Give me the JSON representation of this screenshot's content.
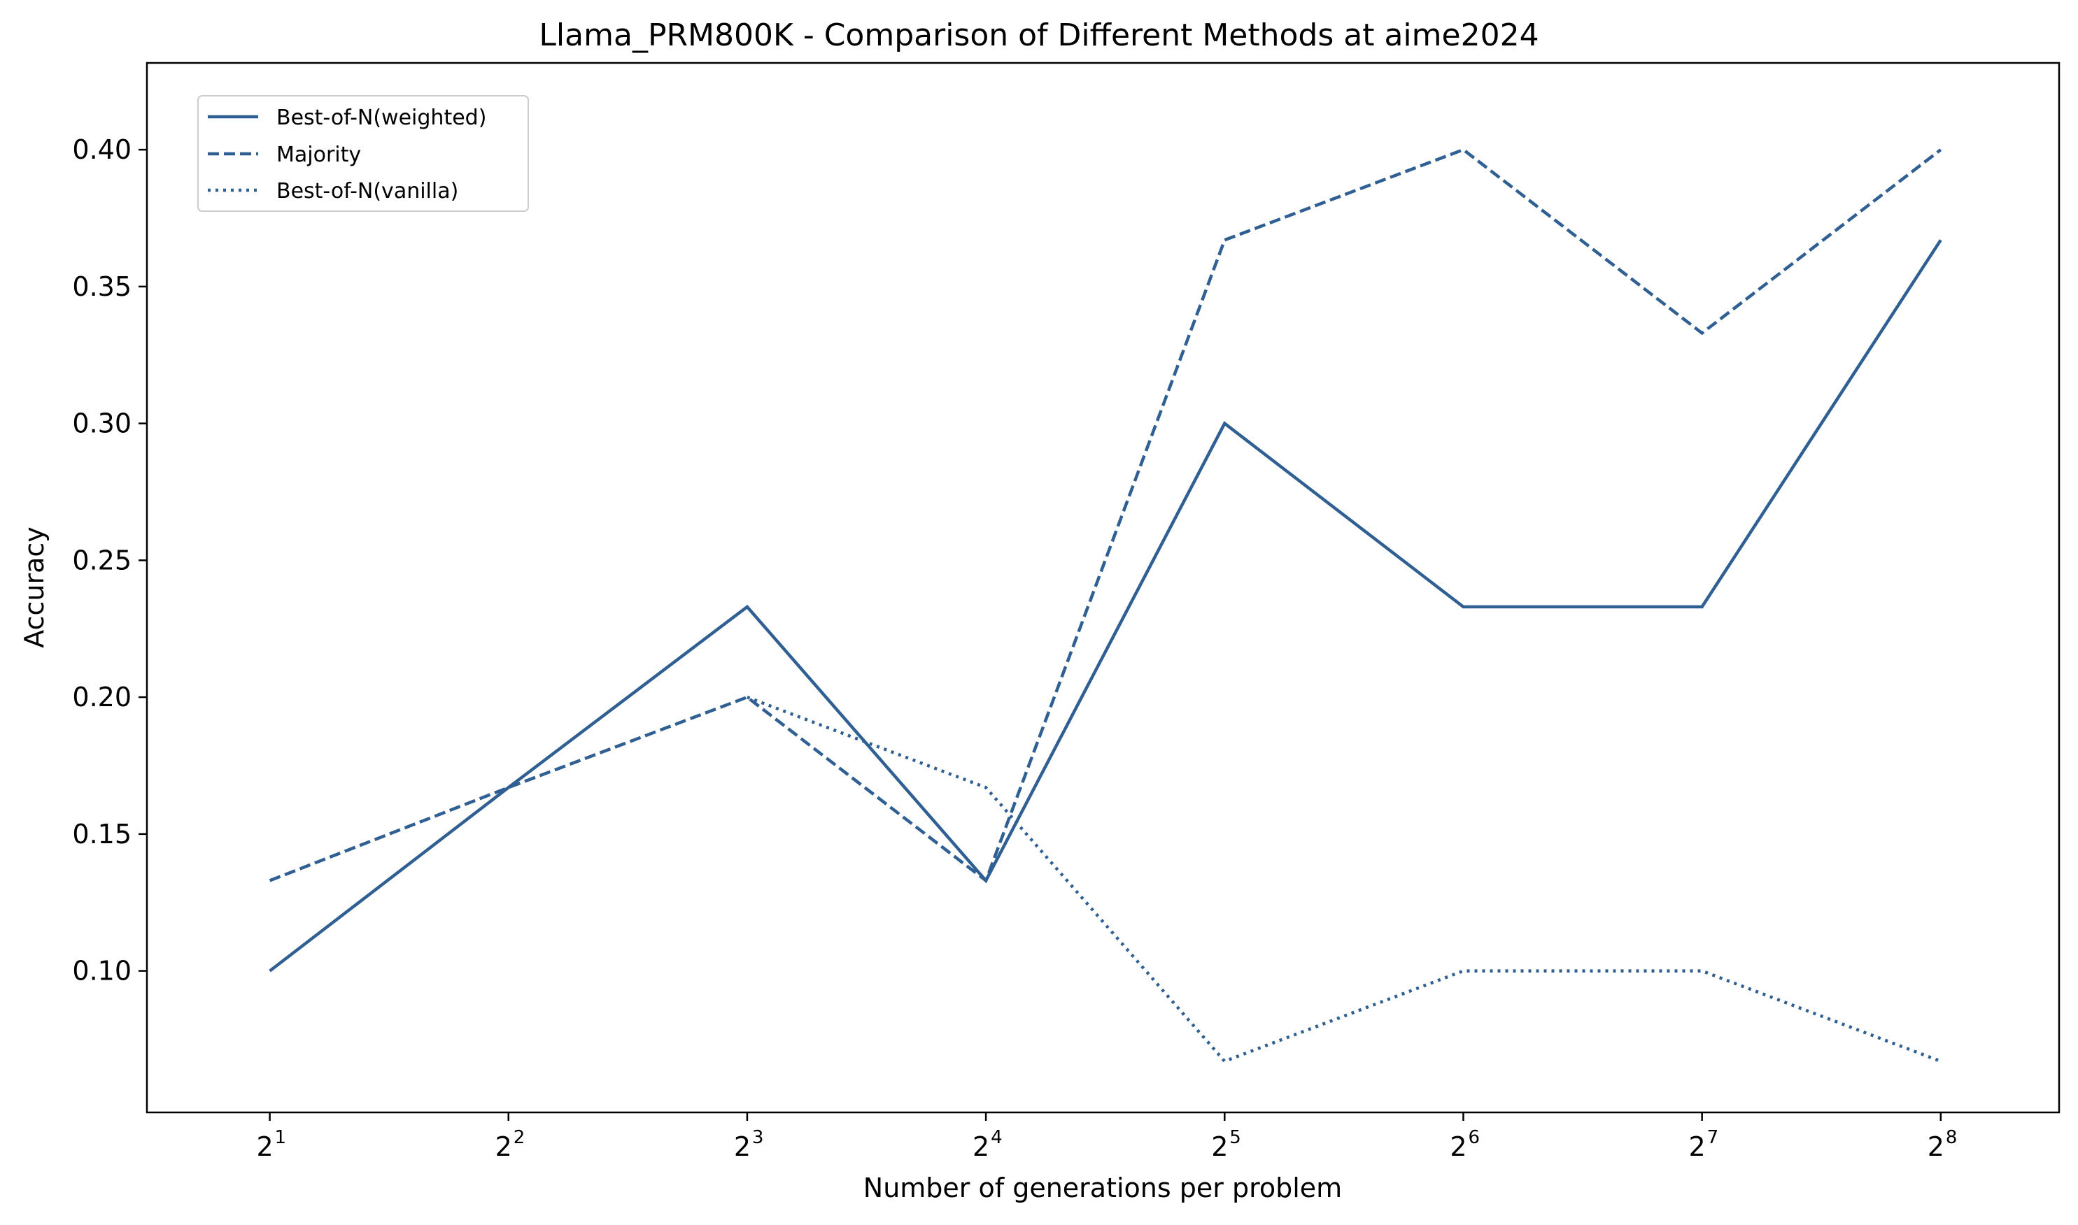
{
  "chart_data": {
    "type": "line",
    "title": "Llama_PRM800K - Comparison of Different Methods at aime2024",
    "xlabel": "Number of generations per problem",
    "ylabel": "Accuracy",
    "x_scale": "log2",
    "x": [
      2,
      4,
      8,
      16,
      32,
      64,
      128,
      256
    ],
    "x_tick_labels": [
      {
        "base": "2",
        "exp": "1"
      },
      {
        "base": "2",
        "exp": "2"
      },
      {
        "base": "2",
        "exp": "3"
      },
      {
        "base": "2",
        "exp": "4"
      },
      {
        "base": "2",
        "exp": "5"
      },
      {
        "base": "2",
        "exp": "6"
      },
      {
        "base": "2",
        "exp": "7"
      },
      {
        "base": "2",
        "exp": "8"
      }
    ],
    "xlim": [
      1.4,
      361
    ],
    "ylim": [
      0.0483,
      0.4317
    ],
    "y_ticks": [
      0.1,
      0.15,
      0.2,
      0.25,
      0.3,
      0.35,
      0.4
    ],
    "y_tick_labels": [
      "0.10",
      "0.15",
      "0.20",
      "0.25",
      "0.30",
      "0.35",
      "0.40"
    ],
    "grid": false,
    "legend_position": "top-left",
    "series": [
      {
        "name": "Best-of-N(weighted)",
        "style": "solid",
        "color": "#2f5f93",
        "values": [
          0.1,
          0.167,
          0.233,
          0.133,
          0.3,
          0.233,
          0.233,
          0.367
        ]
      },
      {
        "name": "Majority",
        "style": "dashed",
        "color": "#2f5f93",
        "values": [
          0.133,
          0.167,
          0.2,
          0.133,
          0.367,
          0.4,
          0.333,
          0.4
        ]
      },
      {
        "name": "Best-of-N(vanilla)",
        "style": "dotted",
        "color": "#2f5f93",
        "values": [
          null,
          null,
          0.2,
          0.167,
          0.067,
          0.1,
          0.1,
          0.067
        ]
      }
    ]
  }
}
